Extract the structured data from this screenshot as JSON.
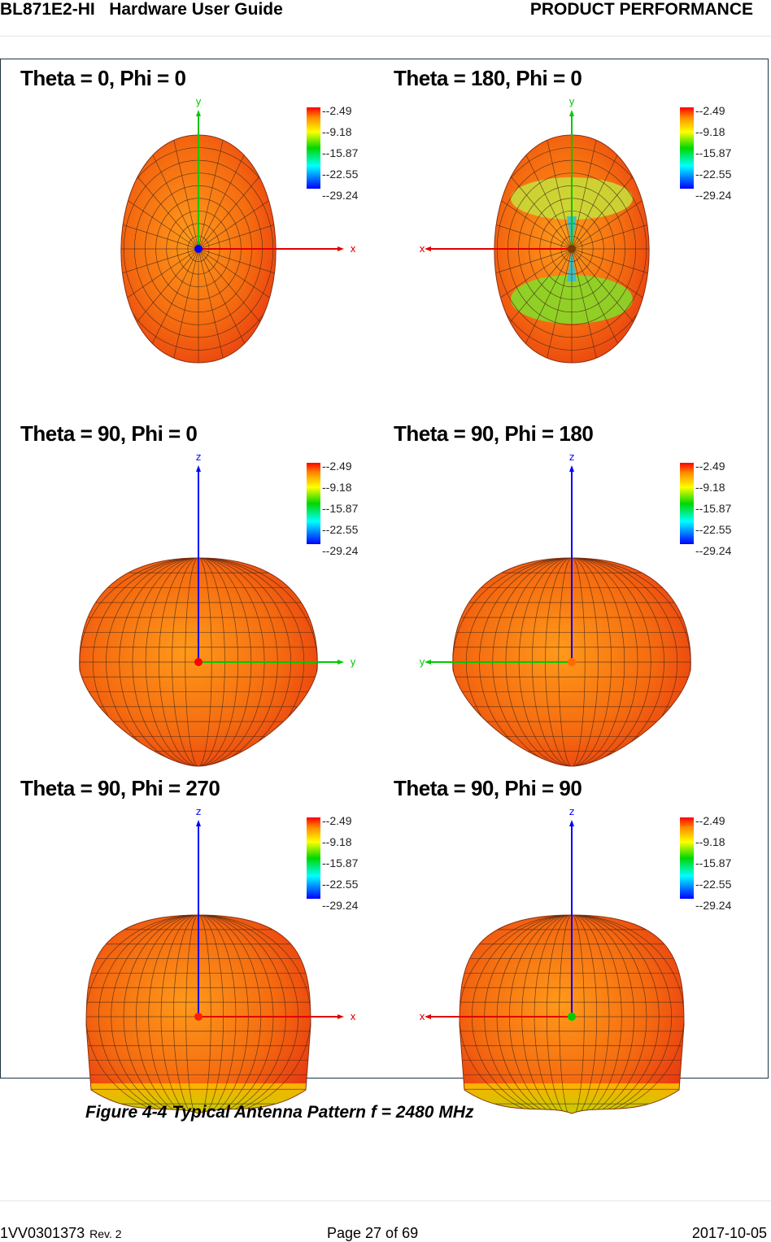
{
  "header": {
    "doc_id": "BL871E2-HI   Hardware User Guide",
    "section": "PRODUCT PERFORMANCE"
  },
  "legend_ticks": [
    "--2.49",
    "--9.18",
    "--15.87",
    "--22.55",
    "--29.24"
  ],
  "panels": [
    {
      "title": "Theta = 0, Phi = 0",
      "axis_h": "x",
      "axis_v": "y",
      "h_dir": "right",
      "center_color": "#0000ff",
      "shape": "round",
      "green_band": false,
      "green_bottom": false
    },
    {
      "title": "Theta = 180, Phi = 0",
      "axis_h": "x",
      "axis_v": "y",
      "h_dir": "left",
      "center_color": "#7a3a00",
      "shape": "round",
      "green_band": true,
      "green_bottom": false
    },
    {
      "title": "Theta = 90, Phi = 0",
      "axis_h": "y",
      "axis_v": "z",
      "h_dir": "right",
      "center_color": "#ff0000",
      "shape": "pear",
      "green_band": false,
      "green_bottom": false
    },
    {
      "title": "Theta = 90, Phi = 180",
      "axis_h": "y",
      "axis_v": "z",
      "h_dir": "left",
      "center_color": "#ff6a00",
      "shape": "pear",
      "green_band": false,
      "green_bottom": false
    },
    {
      "title": "Theta = 90, Phi = 270",
      "axis_h": "x",
      "axis_v": "z",
      "h_dir": "right",
      "center_color": "#ff2000",
      "shape": "dome",
      "green_band": false,
      "green_bottom": true
    },
    {
      "title": "Theta = 90, Phi = 90",
      "axis_h": "x",
      "axis_v": "z",
      "h_dir": "left",
      "center_color": "#00cc00",
      "shape": "dome",
      "green_band": false,
      "green_bottom": true
    }
  ],
  "caption": "Figure 4-4 Typical Antenna Pattern f = 2480 MHz",
  "footer": {
    "doc_number": "1VV0301373",
    "revision": "Rev. 2",
    "page": "Page 27 of 69",
    "date": "2017-10-05"
  }
}
